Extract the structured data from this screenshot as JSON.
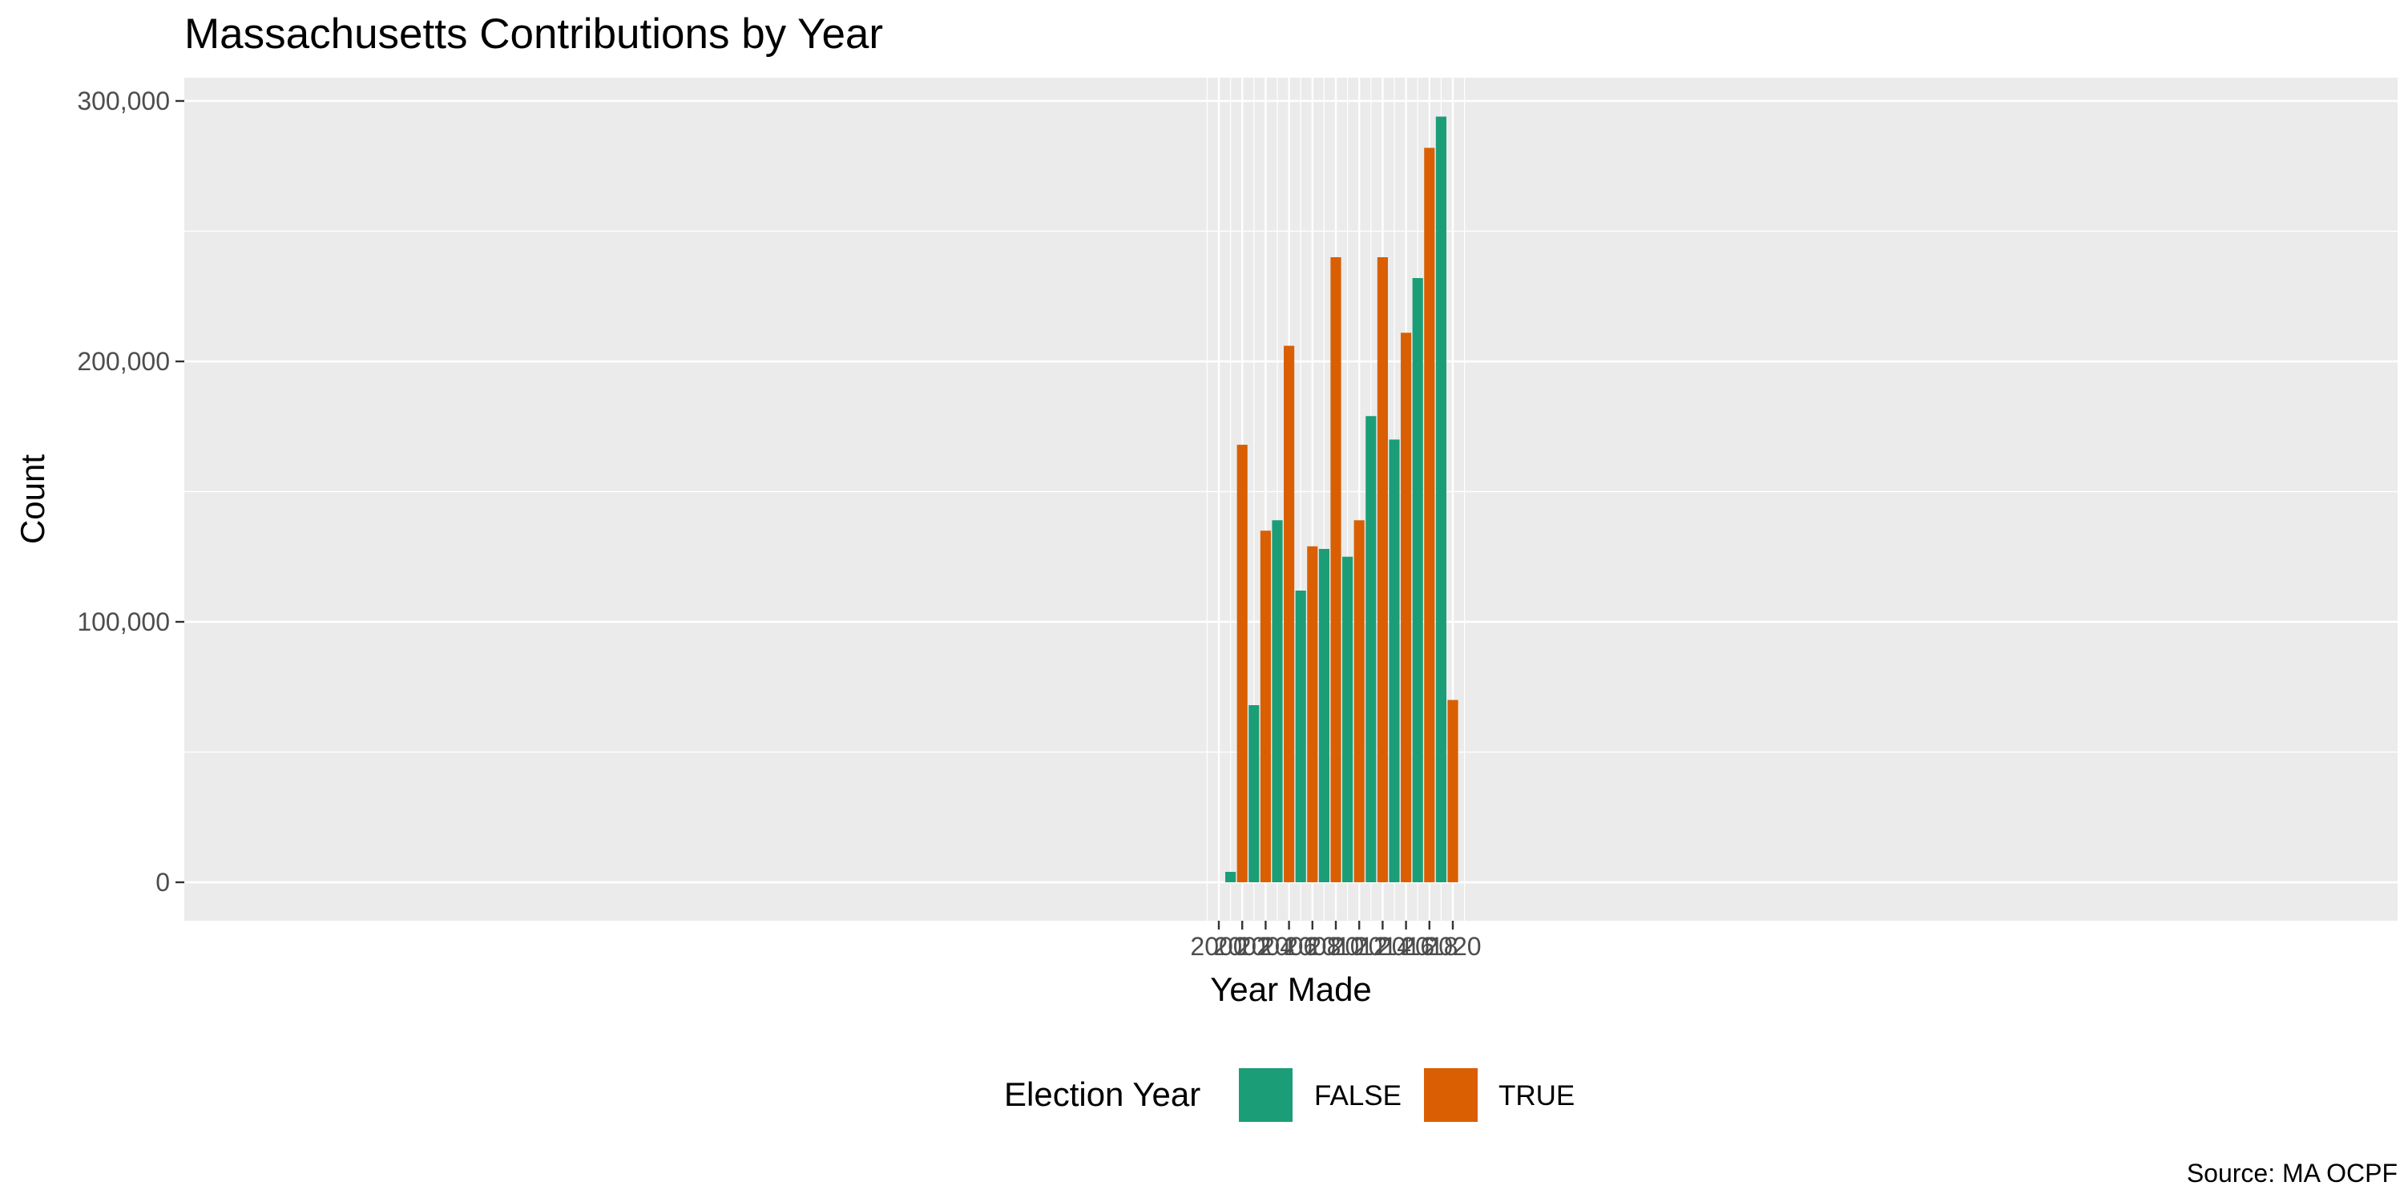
{
  "chart_data": {
    "type": "bar",
    "title": "Massachusetts Contributions by Year",
    "xlabel": "Year Made",
    "ylabel": "Count",
    "caption": "Source: MA OCPF",
    "x_tick_labels": [
      "2000",
      "2002",
      "2004",
      "2006",
      "2008",
      "2010",
      "2012",
      "2014",
      "2016",
      "2018",
      "2020"
    ],
    "y_ticks": [
      0,
      100000,
      200000,
      300000
    ],
    "y_tick_labels": [
      "0",
      "100,000",
      "200,000",
      "300,000"
    ],
    "ylim": [
      -15000,
      309000
    ],
    "grid": true,
    "legend": {
      "title": "Election Year",
      "position": "bottom",
      "entries": [
        {
          "label": "FALSE",
          "color": "#1b9e77"
        },
        {
          "label": "TRUE",
          "color": "#d95f02"
        }
      ]
    },
    "series": [
      {
        "name": "FALSE",
        "color": "#1b9e77",
        "points": [
          {
            "x": 2001,
            "y": 4000
          },
          {
            "x": 2003,
            "y": 68000
          },
          {
            "x": 2005,
            "y": 139000
          },
          {
            "x": 2007,
            "y": 112000
          },
          {
            "x": 2009,
            "y": 128000
          },
          {
            "x": 2011,
            "y": 125000
          },
          {
            "x": 2013,
            "y": 179000
          },
          {
            "x": 2015,
            "y": 170000
          },
          {
            "x": 2017,
            "y": 232000
          },
          {
            "x": 2019,
            "y": 294000
          }
        ]
      },
      {
        "name": "TRUE",
        "color": "#d95f02",
        "points": [
          {
            "x": 2002,
            "y": 168000
          },
          {
            "x": 2004,
            "y": 135000
          },
          {
            "x": 2006,
            "y": 206000
          },
          {
            "x": 2008,
            "y": 129000
          },
          {
            "x": 2010,
            "y": 240000
          },
          {
            "x": 2012,
            "y": 139000
          },
          {
            "x": 2014,
            "y": 240000
          },
          {
            "x": 2016,
            "y": 211000
          },
          {
            "x": 2018,
            "y": 282000
          },
          {
            "x": 2020,
            "y": 70000
          }
        ]
      }
    ]
  }
}
